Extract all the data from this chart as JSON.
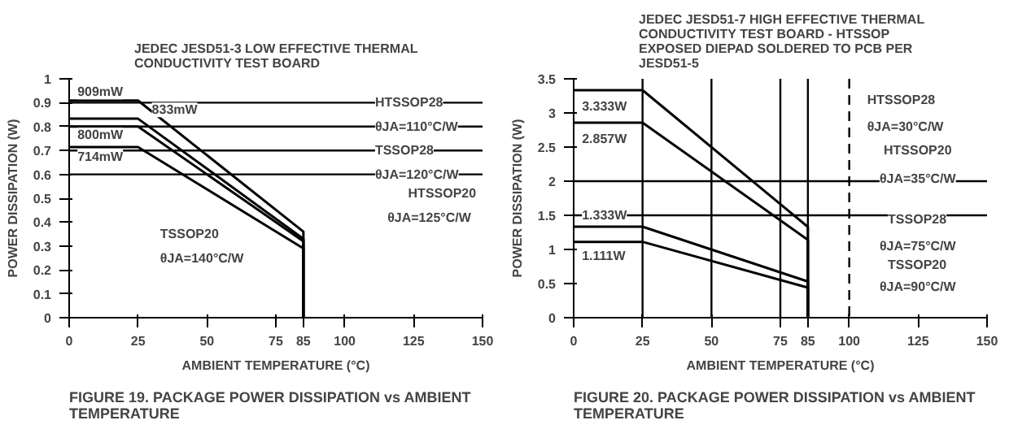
{
  "chart_data": [
    {
      "type": "line",
      "title": "JEDEC JESD51-3 LOW EFFECTIVE THERMAL\nCONDUCTIVITY TEST BOARD",
      "xlabel": "AMBIENT TEMPERATURE (°C)",
      "ylabel": "POWER DISSIPATION (W)",
      "xlim": [
        0,
        150
      ],
      "ylim": [
        0,
        1
      ],
      "xticks": [
        0,
        25,
        50,
        75,
        85,
        100,
        125,
        150
      ],
      "yticks": [
        0,
        0.1,
        0.2,
        0.3,
        0.4,
        0.5,
        0.6,
        0.7,
        0.8,
        0.9,
        1
      ],
      "grid": false,
      "series": [
        {
          "color": "#000000",
          "x": [
            0,
            25,
            85,
            85
          ],
          "values": [
            0.909,
            0.909,
            0.36,
            0
          ]
        },
        {
          "color": "#000000",
          "x": [
            0,
            25,
            85,
            85
          ],
          "values": [
            0.833,
            0.833,
            0.33,
            0
          ]
        },
        {
          "color": "#000000",
          "x": [
            0,
            25,
            85,
            85
          ],
          "values": [
            0.8,
            0.8,
            0.32,
            0
          ]
        },
        {
          "color": "#000000",
          "x": [
            0,
            25,
            85,
            85
          ],
          "values": [
            0.714,
            0.714,
            0.29,
            0
          ]
        }
      ],
      "ref_lines": [
        {
          "axis": "y",
          "value": 0.6
        },
        {
          "axis": "y",
          "value": 0.7
        },
        {
          "axis": "y",
          "value": 0.8
        },
        {
          "axis": "y",
          "value": 0.9
        }
      ],
      "annotations": [
        "909mW",
        "833mW",
        "800mW",
        "714mW",
        "HTSSOP28",
        "θJA=110°C/W",
        "TSSOP28",
        "θJA=120°C/W",
        "HTSSOP20",
        "θJA=125°C/W",
        "TSSOP20",
        "θJA=140°C/W",
        "FIGURE 19.  PACKAGE POWER DISSIPATION vs AMBIENT\nTEMPERATURE"
      ]
    },
    {
      "type": "line",
      "title": "JEDEC JESD51-7 HIGH EFFECTIVE THERMAL\nCONDUCTIVITY TEST BOARD - HTSSOP\nEXPOSED DIEPAD SOLDERED TO PCB PER\nJESD51-5",
      "xlabel": "AMBIENT TEMPERATURE (°C)",
      "ylabel": "POWER DISSIPATION (W)",
      "xlim": [
        0,
        150
      ],
      "ylim": [
        0,
        3.5
      ],
      "xticks": [
        0,
        25,
        50,
        75,
        85,
        100,
        125,
        150
      ],
      "yticks": [
        0,
        0.5,
        1,
        1.5,
        2,
        2.5,
        3,
        3.5
      ],
      "grid": false,
      "series": [
        {
          "color": "#000000",
          "x": [
            0,
            25,
            85,
            85
          ],
          "values": [
            3.333,
            3.333,
            1.33,
            0
          ]
        },
        {
          "color": "#000000",
          "x": [
            0,
            25,
            85,
            85
          ],
          "values": [
            2.857,
            2.857,
            1.14,
            0
          ]
        },
        {
          "color": "#000000",
          "x": [
            0,
            25,
            85,
            85
          ],
          "values": [
            1.333,
            1.333,
            0.53,
            0
          ]
        },
        {
          "color": "#000000",
          "x": [
            0,
            25,
            85,
            85
          ],
          "values": [
            1.111,
            1.111,
            0.44,
            0
          ]
        }
      ],
      "ref_lines": [
        {
          "axis": "y",
          "value": 1.5
        },
        {
          "axis": "y",
          "value": 2
        },
        {
          "axis": "x",
          "value": 25
        },
        {
          "axis": "x",
          "value": 50
        },
        {
          "axis": "x",
          "value": 75
        },
        {
          "axis": "x",
          "value": 85
        },
        {
          "axis": "x",
          "value": 100,
          "line_style": "dashed"
        }
      ],
      "annotations": [
        "3.333W",
        "2.857W",
        "1.333W",
        "1.111W",
        "HTSSOP28",
        "θJA=30°C/W",
        "HTSSOP20",
        "θJA=35°C/W",
        "TSSOP28",
        "θJA=75°C/W",
        "TSSOP20",
        "θJA=90°C/W",
        "FIGURE 20.  PACKAGE POWER DISSIPATION vs AMBIENT\nTEMPERATURE"
      ]
    }
  ]
}
